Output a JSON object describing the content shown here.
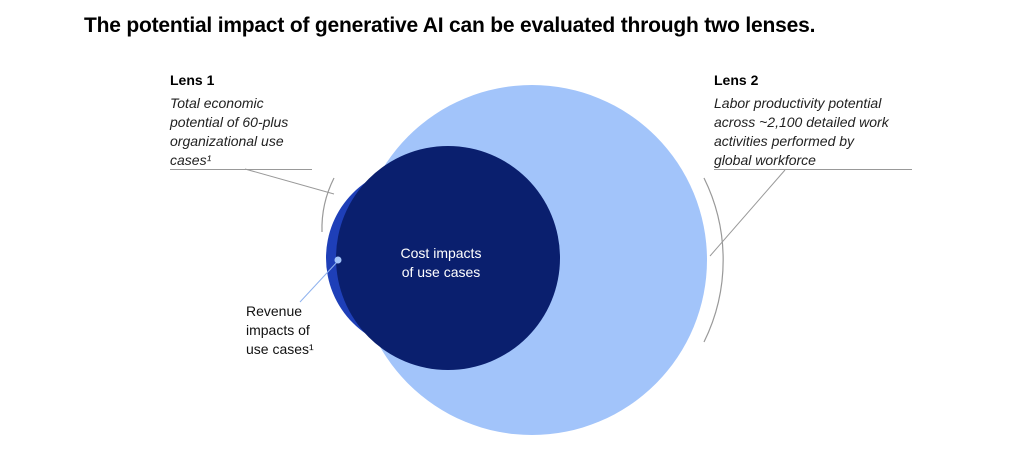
{
  "title": "The potential impact of generative AI can be evaluated through two lenses.",
  "lens1": {
    "heading": "Lens 1",
    "description": [
      "Total economic",
      "potential of 60-plus",
      "organizational use",
      "cases¹"
    ]
  },
  "lens2": {
    "heading": "Lens 2",
    "description": [
      "Labor productivity potential",
      "across ~2,100 detailed work",
      "activities performed by",
      "global workforce"
    ]
  },
  "circles": {
    "cost_label": [
      "Cost impacts",
      "of use cases"
    ],
    "revenue_label": [
      "Revenue",
      "impacts of",
      "use cases¹"
    ]
  },
  "colors": {
    "lens2_fill": "#a2c4fa",
    "revenue_fill": "#1e3fb8",
    "cost_fill": "#0a1f6e",
    "leader": "#999999"
  }
}
